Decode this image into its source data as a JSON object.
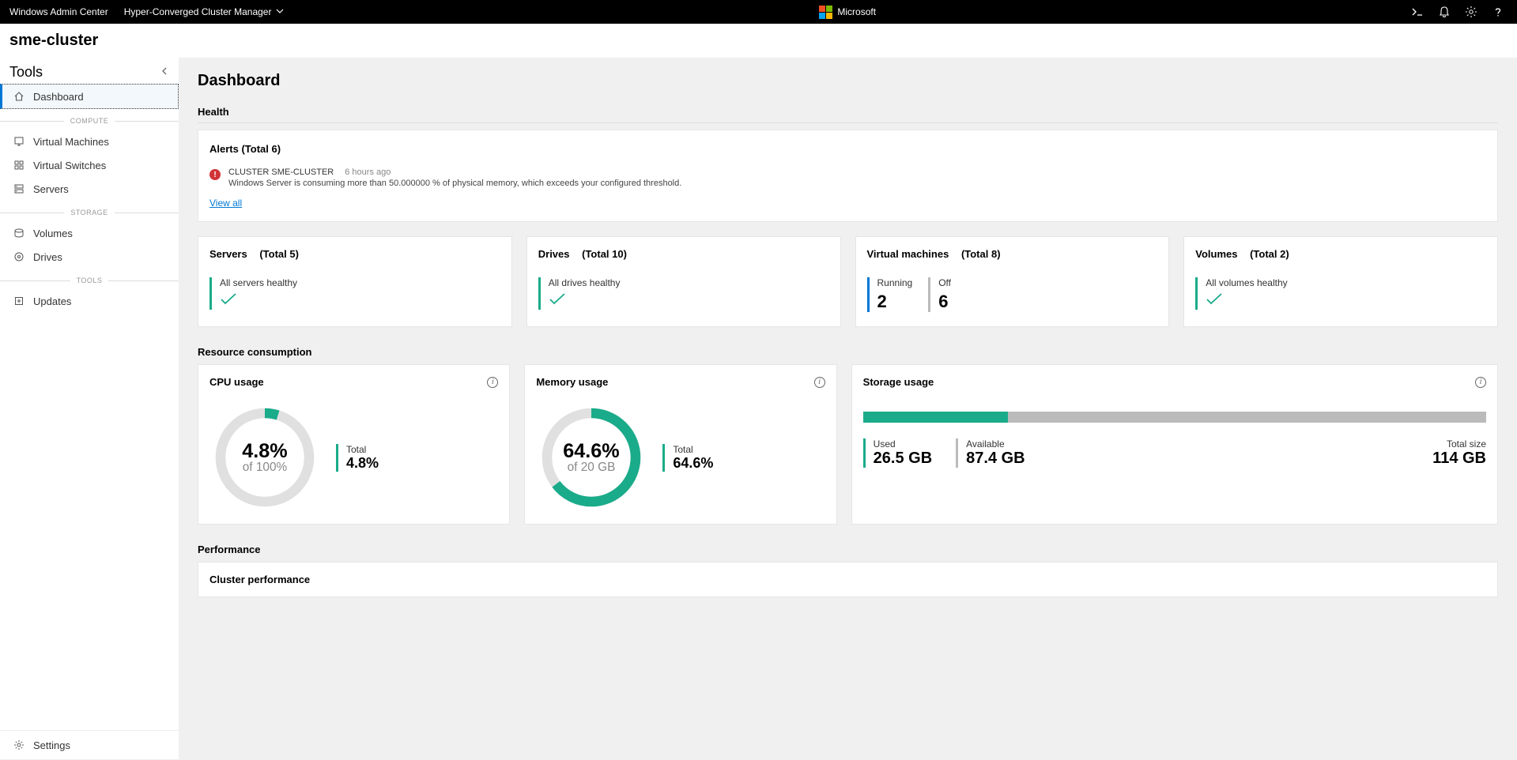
{
  "topbar": {
    "product": "Windows Admin Center",
    "context": "Hyper-Converged Cluster Manager",
    "brand": "Microsoft"
  },
  "cluster": {
    "name": "sme-cluster"
  },
  "sidebar": {
    "title": "Tools",
    "items": [
      {
        "label": "Dashboard"
      }
    ],
    "sections": [
      {
        "label": "COMPUTE",
        "items": [
          {
            "label": "Virtual Machines"
          },
          {
            "label": "Virtual Switches"
          },
          {
            "label": "Servers"
          }
        ]
      },
      {
        "label": "STORAGE",
        "items": [
          {
            "label": "Volumes"
          },
          {
            "label": "Drives"
          }
        ]
      },
      {
        "label": "TOOLS",
        "items": [
          {
            "label": "Updates"
          }
        ]
      }
    ],
    "footer": {
      "label": "Settings"
    }
  },
  "dashboard": {
    "title": "Dashboard",
    "health": {
      "title": "Health",
      "alerts": {
        "title": "Alerts (Total 6)",
        "source": "CLUSTER SME-CLUSTER",
        "time": "6 hours ago",
        "message": "Windows Server is consuming more than 50.000000 % of physical memory, which exceeds your configured threshold.",
        "viewAll": "View all"
      }
    },
    "status": {
      "servers": {
        "label": "Servers",
        "total": "(Total 5)",
        "text": "All servers healthy",
        "accent": "#1aab8a"
      },
      "drives": {
        "label": "Drives",
        "total": "(Total 10)",
        "text": "All drives healthy",
        "accent": "#1aab8a"
      },
      "vms": {
        "label": "Virtual machines",
        "total": "(Total 8)",
        "running": {
          "label": "Running",
          "value": "2",
          "accent": "#0078d4"
        },
        "off": {
          "label": "Off",
          "value": "6",
          "accent": "#bbbbbb"
        }
      },
      "volumes": {
        "label": "Volumes",
        "total": "(Total 2)",
        "text": "All volumes healthy",
        "accent": "#1aab8a"
      }
    },
    "resource": {
      "title": "Resource consumption",
      "cpu": {
        "title": "CPU usage",
        "percent": 4.8,
        "centerValue": "4.8%",
        "centerSub": "of 100%",
        "totalLabel": "Total",
        "totalValue": "4.8%",
        "ring_fg": "#1aab8a",
        "ring_bg": "#e0e0e0"
      },
      "memory": {
        "title": "Memory usage",
        "percent": 64.6,
        "centerValue": "64.6%",
        "centerSub": "of 20 GB",
        "totalLabel": "Total",
        "totalValue": "64.6%",
        "ring_fg": "#1aab8a",
        "ring_bg": "#e0e0e0"
      },
      "storage": {
        "title": "Storage usage",
        "usedPercent": 23.2,
        "used": {
          "label": "Used",
          "value": "26.5 GB"
        },
        "available": {
          "label": "Available",
          "value": "87.4 GB"
        },
        "total": {
          "label": "Total size",
          "value": "114 GB"
        },
        "bar_fg": "#1aab8a",
        "bar_bg": "#bbbbbb"
      }
    },
    "performance": {
      "title": "Performance",
      "subtitle": "Cluster performance"
    }
  },
  "colors": {
    "accent_teal": "#1aab8a",
    "accent_blue": "#0078d4",
    "gray": "#bbbbbb",
    "alert_red": "#d13438"
  }
}
